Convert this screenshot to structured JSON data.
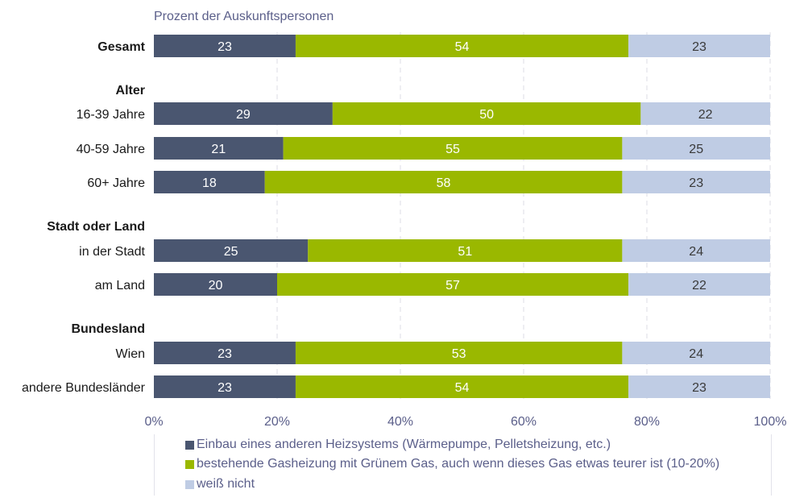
{
  "chart_data": {
    "type": "bar",
    "orientation": "horizontal",
    "stacked": true,
    "title": "Prozent der Auskunftspersonen",
    "xlim": [
      0,
      100
    ],
    "x_ticks": [
      "0%",
      "20%",
      "40%",
      "60%",
      "80%",
      "100%"
    ],
    "grid": "vertical dashed",
    "legend_position": "bottom",
    "rows": [
      {
        "label": "Gesamt",
        "bold": true,
        "values": [
          23,
          54,
          23
        ]
      },
      {
        "label": "Alter",
        "bold": true,
        "header": true
      },
      {
        "label": "16-39 Jahre",
        "values": [
          29,
          50,
          22
        ]
      },
      {
        "label": "40-59 Jahre",
        "values": [
          21,
          55,
          25
        ]
      },
      {
        "label": "60+ Jahre",
        "values": [
          18,
          58,
          23
        ]
      },
      {
        "label": "Stadt oder Land",
        "bold": true,
        "header": true
      },
      {
        "label": "in der Stadt",
        "values": [
          25,
          51,
          24
        ]
      },
      {
        "label": "am Land",
        "values": [
          20,
          57,
          22
        ]
      },
      {
        "label": "Bundesland",
        "bold": true,
        "header": true
      },
      {
        "label": "Wien",
        "values": [
          23,
          53,
          24
        ]
      },
      {
        "label": "andere Bundesländer",
        "values": [
          23,
          54,
          23
        ]
      }
    ],
    "series": [
      {
        "name": "Einbau eines anderen Heizsystems (Wärmepumpe, Pelletsheizung, etc.)",
        "color": "#4a5670"
      },
      {
        "name": "bestehende Gasheizung mit Grünem Gas, auch wenn dieses Gas etwas teurer ist (10-20%)",
        "color": "#9ab800"
      },
      {
        "name": "weiß nicht",
        "color": "#bfcce4"
      }
    ]
  }
}
